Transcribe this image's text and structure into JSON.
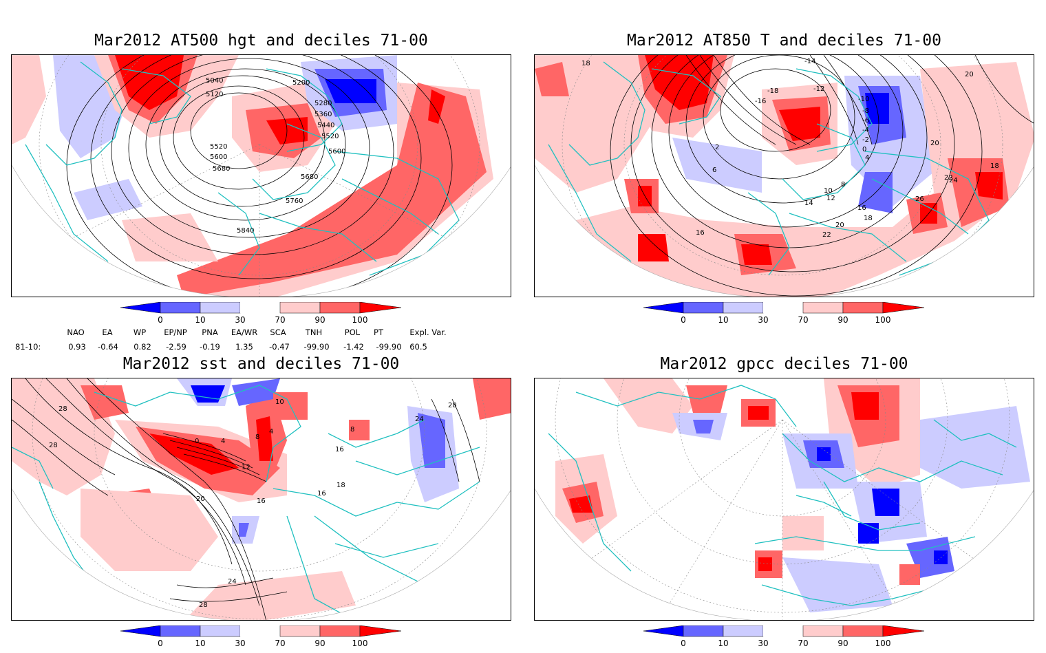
{
  "panels": [
    {
      "title": "Mar2012 AT500 hgt and deciles 71-00"
    },
    {
      "title": "Mar2012 AT850 T and deciles 71-00"
    },
    {
      "title": "Mar2012 sst and deciles 71-00"
    },
    {
      "title": "Mar2012 gpcc deciles 71-00"
    }
  ],
  "colorbar": {
    "labels": [
      "0",
      "10",
      "30",
      "70",
      "90",
      "100"
    ],
    "colors": [
      "#0000ff",
      "#6666ff",
      "#ccccff",
      "#ffffff",
      "#ffcccc",
      "#ff6666",
      "#ff0000"
    ]
  },
  "indices": {
    "period_label": "81-10:",
    "names": [
      "NAO",
      "EA",
      "WP",
      "EP/NP",
      "PNA",
      "EA/WR",
      "SCA",
      "TNH",
      "POL",
      "PT",
      "Expl. Var."
    ],
    "values": [
      "0.93",
      "-0.64",
      "0.82",
      "-2.59",
      "-0.19",
      "1.35",
      "-0.47",
      "-99.90",
      "-1.42",
      "-99.90",
      "60.5"
    ]
  },
  "contour_labels": {
    "hgt500": [
      "5040",
      "5120",
      "5200",
      "5280",
      "5360",
      "5440",
      "5520",
      "5520",
      "5600",
      "5600",
      "5680",
      "5680",
      "5760",
      "5840"
    ],
    "t850": [
      "-14",
      "-12",
      "-10",
      "-8",
      "-6",
      "-4",
      "-2",
      "0",
      "2",
      "4",
      "6",
      "8",
      "10",
      "12",
      "14",
      "16",
      "18",
      "20",
      "22",
      "24",
      "26",
      "-16",
      "-18",
      "6",
      "16",
      "18",
      "20",
      "22",
      "18",
      "20"
    ],
    "sst": [
      "28",
      "28",
      "20",
      "24",
      "28",
      "12",
      "8",
      "4",
      "0",
      "16",
      "16",
      "18",
      "16",
      "24",
      "28",
      "4",
      "8",
      "10"
    ]
  },
  "colors": {
    "coastline": "#20c0c0",
    "contour": "#000000",
    "grid": "#888888"
  }
}
